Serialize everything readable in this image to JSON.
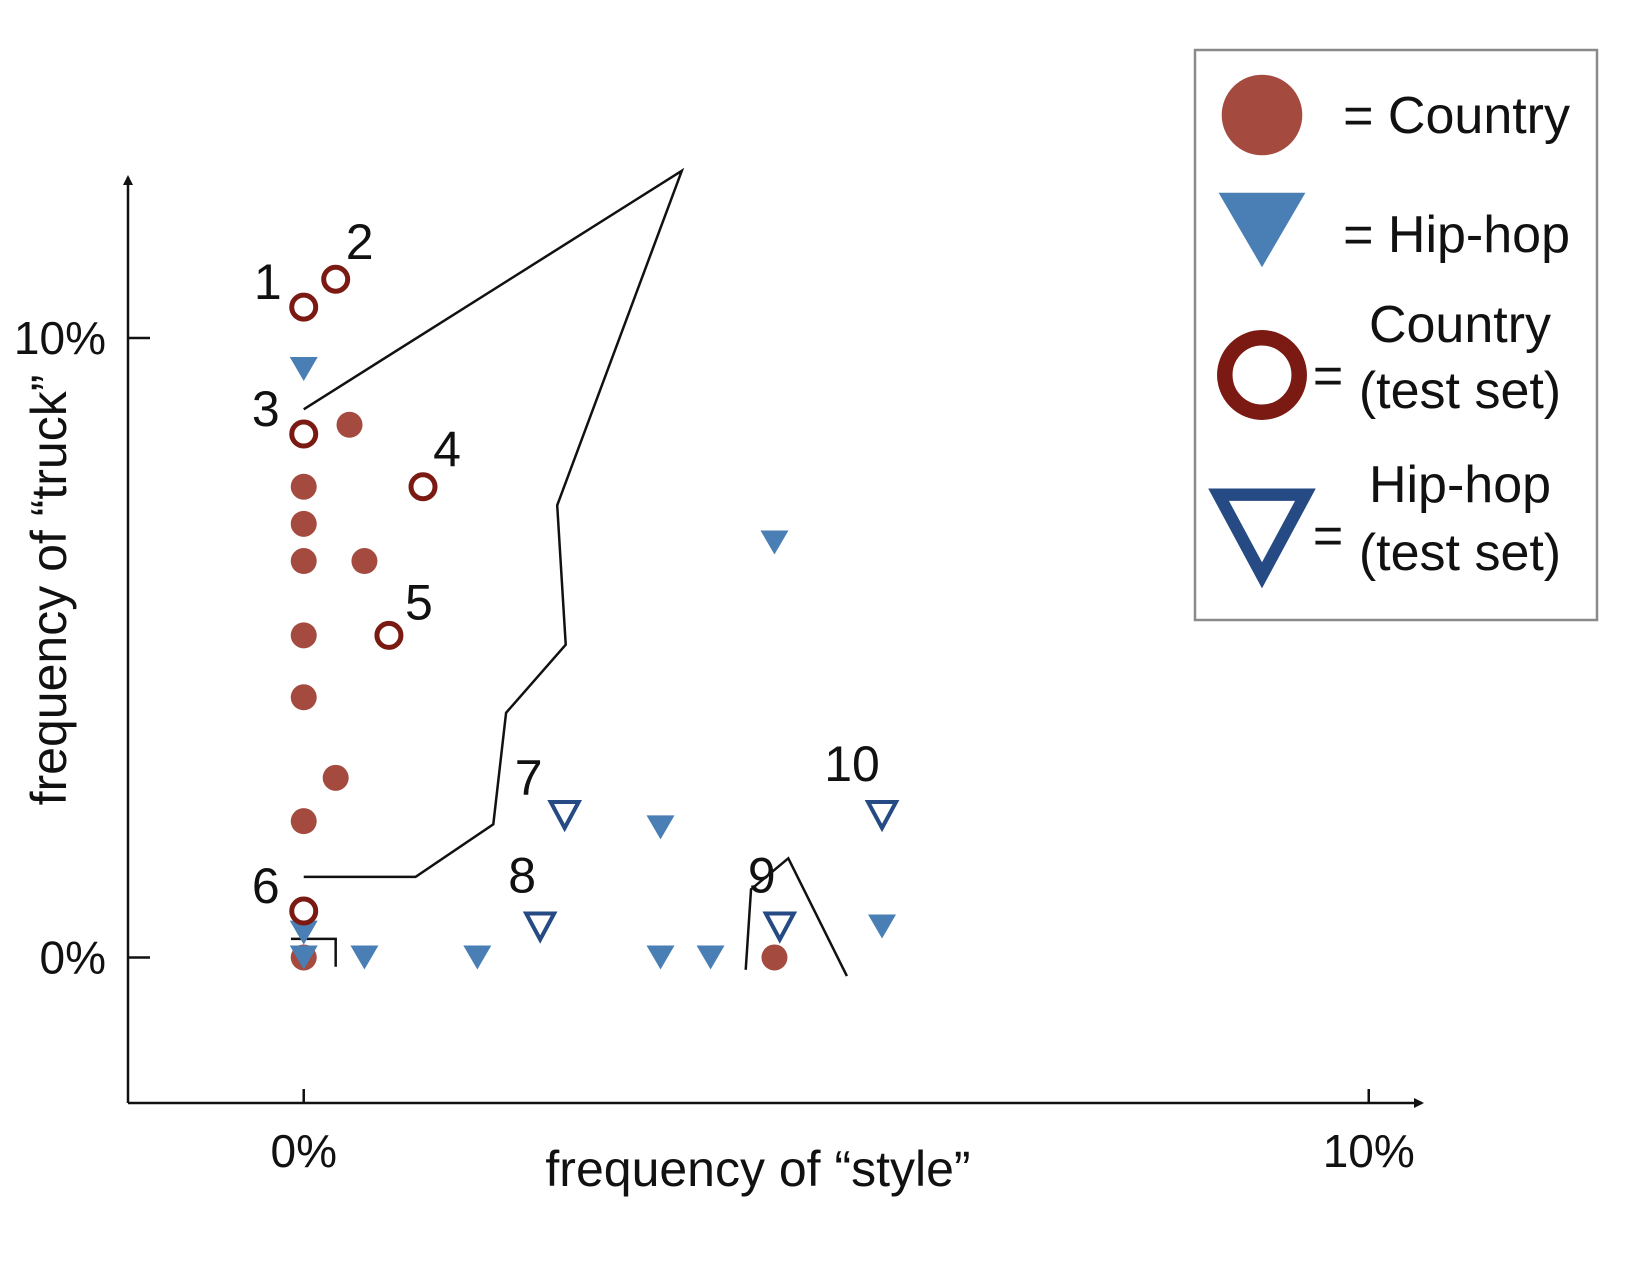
{
  "chart_data": {
    "type": "scatter",
    "title": "",
    "xlabel": "frequency of “style”",
    "ylabel": "frequency of “truck”",
    "x_tick_labels": [
      {
        "value": 0,
        "label": "0%"
      },
      {
        "value": 10,
        "label": "10%"
      }
    ],
    "y_tick_labels": [
      {
        "value": 0,
        "label": "0%"
      },
      {
        "value": 10,
        "label": "10%"
      }
    ],
    "xlim": [
      -1.65,
      10.5
    ],
    "ylim": [
      -2.35,
      12.6
    ],
    "grid": false,
    "legend_position": "top-right",
    "colors": {
      "country": "#a44a3f",
      "country_test": "#7a1a12",
      "hiphop": "#4a7fb5",
      "hiphop_test": "#254a84"
    },
    "legend": [
      {
        "marker": "filled-circle",
        "text": [
          "= Country"
        ]
      },
      {
        "marker": "filled-triangle",
        "text": [
          "= Hip-hop"
        ]
      },
      {
        "marker": "open-circle",
        "text": [
          "Country",
          "(test set)"
        ],
        "prefix": "="
      },
      {
        "marker": "open-triangle",
        "text": [
          "Hip-hop",
          "(test set)"
        ],
        "prefix": "="
      }
    ],
    "series": [
      {
        "name": "Country",
        "marker": "filled-circle",
        "points": [
          [
            0.43,
            8.6
          ],
          [
            0,
            7.6
          ],
          [
            0,
            7.0
          ],
          [
            0,
            6.4
          ],
          [
            0.57,
            6.4
          ],
          [
            0,
            5.2
          ],
          [
            0,
            4.2
          ],
          [
            0.3,
            2.9
          ],
          [
            0,
            2.2
          ],
          [
            0,
            0
          ],
          [
            4.42,
            0
          ]
        ]
      },
      {
        "name": "Hip-hop",
        "marker": "filled-triangle",
        "points": [
          [
            0,
            9.5
          ],
          [
            4.42,
            6.7
          ],
          [
            3.35,
            2.1
          ],
          [
            5.43,
            0.5
          ],
          [
            0,
            0.4
          ],
          [
            0,
            0
          ],
          [
            0.57,
            0
          ],
          [
            1.63,
            0
          ],
          [
            3.35,
            0
          ],
          [
            3.82,
            0
          ]
        ]
      },
      {
        "name": "Country (test set)",
        "marker": "open-circle",
        "points": [
          {
            "label": "1",
            "x": 0,
            "y": 10.5
          },
          {
            "label": "2",
            "x": 0.3,
            "y": 10.95
          },
          {
            "label": "3",
            "x": 0,
            "y": 8.45
          },
          {
            "label": "4",
            "x": 1.12,
            "y": 7.6
          },
          {
            "label": "5",
            "x": 0.8,
            "y": 5.2
          },
          {
            "label": "6",
            "x": 0,
            "y": 0.75
          }
        ]
      },
      {
        "name": "Hip-hop (test set)",
        "marker": "open-triangle",
        "points": [
          {
            "label": "7",
            "x": 2.45,
            "y": 2.3
          },
          {
            "label": "8",
            "x": 2.22,
            "y": 0.5
          },
          {
            "label": "9",
            "x": 4.47,
            "y": 0.5
          },
          {
            "label": "10",
            "x": 5.43,
            "y": 2.3
          }
        ]
      }
    ],
    "boundaries": [
      [
        [
          0,
          8.85
        ],
        [
          3.55,
          12.7
        ],
        [
          2.38,
          7.3
        ],
        [
          2.46,
          5.05
        ],
        [
          1.9,
          3.95
        ],
        [
          1.78,
          2.15
        ],
        [
          1.05,
          1.3
        ],
        [
          0,
          1.3
        ]
      ],
      [
        [
          -0.12,
          0.3
        ],
        [
          0.3,
          0.3
        ],
        [
          0.3,
          -0.15
        ]
      ],
      [
        [
          4.15,
          -0.2
        ],
        [
          4.2,
          1.1
        ],
        [
          4.55,
          1.6
        ],
        [
          5.1,
          -0.3
        ]
      ]
    ]
  }
}
